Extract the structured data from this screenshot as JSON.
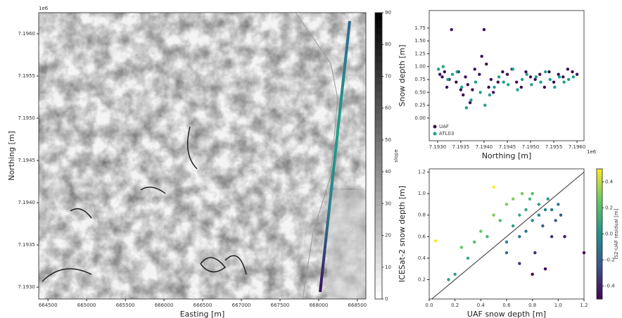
{
  "chart_data": [
    {
      "type": "map",
      "xlabel": "Easting [m]",
      "ylabel": "Northing [m]",
      "y_offset_label": "1e6",
      "xlim": [
        664380,
        668610
      ],
      "ylim": [
        7.19286,
        7.19625
      ],
      "xticks": [
        664500,
        665000,
        665500,
        666000,
        666500,
        667000,
        667500,
        668000,
        668500
      ],
      "yticks": [
        {
          "value": 7.193,
          "label": "7.1930"
        },
        {
          "value": 7.1935,
          "label": "7.1935"
        },
        {
          "value": 7.194,
          "label": "7.1940"
        },
        {
          "value": 7.1945,
          "label": "7.1945"
        },
        {
          "value": 7.195,
          "label": "7.1950"
        },
        {
          "value": 7.1955,
          "label": "7.1955"
        },
        {
          "value": 7.196,
          "label": "7.1960"
        }
      ],
      "colorbar": {
        "label": "slope",
        "colormap": "gray_r",
        "clim": [
          0,
          90
        ],
        "ticks": [
          0,
          10,
          20,
          30,
          40,
          50,
          60,
          70,
          80,
          90
        ]
      }
    },
    {
      "type": "scatter",
      "xlabel": "Northing [m]",
      "ylabel": "Snow depth [m]",
      "x_offset_label": "1e6",
      "legend": "lower left",
      "xlim": [
        7.19282,
        7.19615
      ],
      "ylim": [
        -0.44,
        2.09
      ],
      "xticks": [
        {
          "value": 7.193,
          "label": "7.1930"
        },
        {
          "value": 7.1935,
          "label": "7.1935"
        },
        {
          "value": 7.194,
          "label": "7.1940"
        },
        {
          "value": 7.1945,
          "label": "7.1945"
        },
        {
          "value": 7.195,
          "label": "7.1950"
        },
        {
          "value": 7.1955,
          "label": "7.1955"
        },
        {
          "value": 7.196,
          "label": "7.1960"
        }
      ],
      "yticks": [
        {
          "value": 0,
          "label": "0.00"
        },
        0.25,
        {
          "value": 0.5,
          "label": "0.50"
        },
        0.75,
        {
          "value": 1,
          "label": "1.00"
        },
        1.25,
        {
          "value": 1.5,
          "label": "1.50"
        },
        1.75
      ],
      "series": [
        {
          "name": "UAF",
          "color": "#3b0f5c",
          "x": [
            7.19305,
            7.1931,
            7.19315,
            7.1932,
            7.19325,
            7.1933,
            7.1934,
            7.19345,
            7.1935,
            7.19355,
            7.1936,
            7.19365,
            7.1937,
            7.19375,
            7.1938,
            7.1939,
            7.19395,
            7.194,
            7.19405,
            7.1941,
            7.19415,
            7.1942,
            7.1943,
            7.1944,
            7.1945,
            7.1946,
            7.1947,
            7.1948,
            7.1949,
            7.195,
            7.1951,
            7.1952,
            7.1953,
            7.1954,
            7.1955,
            7.1956,
            7.1957,
            7.1958,
            7.1959,
            7.196
          ],
          "values": [
            0.85,
            0.8,
            0.9,
            0.6,
            0.75,
            1.72,
            0.7,
            0.9,
            0.55,
            0.45,
            0.8,
            0.65,
            0.3,
            0.55,
            0.95,
            0.85,
            1.2,
            1.72,
            1.05,
            0.6,
            0.75,
            0.5,
            0.7,
            0.9,
            0.85,
            0.95,
            0.7,
            0.6,
            0.9,
            0.8,
            0.75,
            0.85,
            0.6,
            0.9,
            0.7,
            0.85,
            0.8,
            0.95,
            0.9,
            0.85
          ]
        },
        {
          "name": "ATL03",
          "color": "#21a08a",
          "x": [
            7.19302,
            7.19312,
            7.19322,
            7.19332,
            7.19342,
            7.19352,
            7.19362,
            7.19372,
            7.19382,
            7.19392,
            7.19402,
            7.19412,
            7.19422,
            7.19432,
            7.19442,
            7.19452,
            7.19462,
            7.19472,
            7.19482,
            7.19492,
            7.19502,
            7.19512,
            7.19522,
            7.19532,
            7.19542,
            7.19552,
            7.19562,
            7.19572,
            7.19582,
            7.19592
          ],
          "values": [
            0.95,
            1.0,
            0.75,
            0.85,
            0.9,
            0.6,
            0.2,
            0.35,
            0.7,
            0.5,
            0.25,
            0.45,
            0.6,
            0.8,
            0.7,
            0.65,
            0.95,
            0.55,
            0.75,
            0.85,
            0.65,
            0.8,
            0.7,
            0.9,
            0.75,
            0.6,
            0.8,
            0.7,
            0.75,
            0.8
          ]
        }
      ]
    },
    {
      "type": "scatter",
      "xlabel": "UAF snow depth [m]",
      "ylabel": "ICESat-2 snow depth [m]",
      "one_to_one": true,
      "xlim": [
        0,
        1.2
      ],
      "ylim": [
        0.02,
        1.23
      ],
      "xticks": [
        {
          "value": 0,
          "label": "0.0"
        },
        0.2,
        0.4,
        0.6,
        0.8,
        {
          "value": 1,
          "label": "1.0"
        },
        1.2
      ],
      "yticks": [
        0.2,
        0.4,
        0.6,
        0.8,
        {
          "value": 1,
          "label": "1.0"
        },
        1.2
      ],
      "colorbar": {
        "label": "IS2-UAF residual [m]",
        "colormap": "viridis",
        "clim": [
          -0.5,
          0.5
        ],
        "ticks": [
          -0.4,
          -0.2,
          {
            "value": 0,
            "label": "0.0"
          },
          0.2,
          0.4
        ]
      },
      "series": [
        {
          "x": [
            0.05,
            0.15,
            0.2,
            0.25,
            0.3,
            0.35,
            0.4,
            0.45,
            0.5,
            0.5,
            0.55,
            0.6,
            0.6,
            0.65,
            0.65,
            0.7,
            0.7,
            0.72,
            0.75,
            0.75,
            0.78,
            0.8,
            0.8,
            0.82,
            0.85,
            0.85,
            0.88,
            0.9,
            0.9,
            0.92,
            0.95,
            0.95,
            0.98,
            1.0,
            1.02,
            1.05,
            0.7,
            0.6,
            0.8,
            1.2
          ],
          "values": [
            0.56,
            0.2,
            0.25,
            0.5,
            0.4,
            0.55,
            0.65,
            0.6,
            1.06,
            0.8,
            0.75,
            0.9,
            0.55,
            0.7,
            0.95,
            0.8,
            0.6,
            1.0,
            0.85,
            0.65,
            0.95,
            0.75,
            1.0,
            0.45,
            0.8,
            0.9,
            0.7,
            0.85,
            0.3,
            0.95,
            0.6,
            0.85,
            0.75,
            0.9,
            0.8,
            0.6,
            0.35,
            0.45,
            0.25,
            0.45
          ],
          "c": [
            0.51,
            0.05,
            0.05,
            0.25,
            0.1,
            0.2,
            0.25,
            0.15,
            0.56,
            0.3,
            0.2,
            0.3,
            -0.05,
            0.05,
            0.3,
            0.1,
            -0.1,
            0.28,
            0.1,
            -0.1,
            0.17,
            -0.05,
            0.2,
            -0.37,
            -0.05,
            0.05,
            -0.18,
            -0.05,
            -0.6,
            0.03,
            -0.35,
            -0.1,
            -0.23,
            -0.1,
            -0.22,
            -0.45,
            -0.35,
            -0.15,
            -0.55,
            -0.75
          ]
        }
      ]
    }
  ]
}
